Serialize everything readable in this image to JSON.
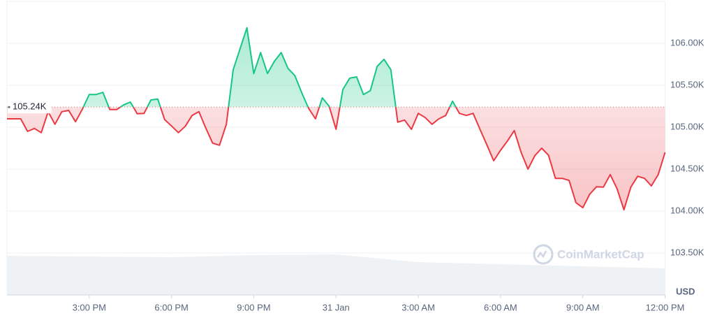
{
  "chart_data": {
    "type": "line",
    "x": [
      0,
      0.25,
      0.5,
      0.75,
      1,
      1.25,
      1.5,
      1.75,
      2,
      2.25,
      2.5,
      2.75,
      3,
      3.25,
      3.5,
      3.75,
      4,
      4.25,
      4.5,
      4.75,
      5,
      5.25,
      5.5,
      5.75,
      6,
      6.25,
      6.5,
      6.75,
      7,
      7.25,
      7.5,
      7.75,
      8,
      8.25,
      8.5,
      8.75,
      9,
      9.25,
      9.5,
      9.75,
      10,
      10.25,
      10.5,
      10.75,
      11,
      11.25,
      11.5,
      11.75,
      12,
      12.25,
      12.5,
      12.75,
      13,
      13.25,
      13.5,
      13.75,
      14,
      14.25,
      14.5,
      14.75,
      15,
      15.25,
      15.5,
      15.75,
      16,
      16.25,
      16.5,
      16.75,
      17,
      17.25,
      17.5,
      17.75,
      18,
      18.25,
      18.5,
      18.75,
      19,
      19.25,
      19.5,
      19.75,
      20,
      20.25,
      20.5,
      20.75,
      21,
      21.25,
      21.5,
      21.75,
      22,
      22.25,
      22.5,
      22.75,
      23,
      23.25,
      23.5,
      23.75,
      24
    ],
    "values": [
      105100,
      105100,
      105100,
      104950,
      104985,
      104935,
      105185,
      105035,
      105185,
      105200,
      105065,
      105215,
      105390,
      105390,
      105415,
      105210,
      105210,
      105265,
      105300,
      105160,
      105165,
      105325,
      105335,
      105090,
      105015,
      104935,
      105010,
      105140,
      105185,
      104990,
      104810,
      104785,
      105035,
      105685,
      105935,
      106185,
      105640,
      105890,
      105640,
      105785,
      105890,
      105700,
      105615,
      105410,
      105225,
      105100,
      105350,
      105250,
      104975,
      105450,
      105585,
      105600,
      105390,
      105435,
      105725,
      105810,
      105685,
      105060,
      105085,
      104975,
      105165,
      105115,
      105035,
      105100,
      105140,
      105310,
      105165,
      105140,
      105165,
      104975,
      104790,
      104600,
      104725,
      104835,
      104960,
      104700,
      104500,
      104660,
      104750,
      104665,
      104390,
      104390,
      104365,
      104100,
      104040,
      104200,
      104290,
      104285,
      104435,
      104265,
      104015,
      104285,
      104415,
      104390,
      104300,
      104435,
      104700
    ],
    "up_color": "#16c784",
    "down_color": "#ea3943",
    "baseline": {
      "value": 105240,
      "label": "105.24K"
    },
    "volume": {
      "x": [
        0,
        3,
        6,
        9,
        12,
        15,
        18,
        21,
        24
      ],
      "values": [
        56,
        55,
        54,
        57,
        58,
        47,
        44,
        41,
        38
      ],
      "ylim": [
        0,
        420
      ],
      "color": "#eff2f5"
    },
    "xlim": [
      0,
      24
    ],
    "xticks": [
      {
        "value": 3,
        "label": "3:00 PM"
      },
      {
        "value": 6,
        "label": "6:00 PM"
      },
      {
        "value": 9,
        "label": "9:00 PM"
      },
      {
        "value": 12,
        "label": "31 Jan"
      },
      {
        "value": 15,
        "label": "3:00 AM"
      },
      {
        "value": 18,
        "label": "6:00 AM"
      },
      {
        "value": 21,
        "label": "9:00 AM"
      },
      {
        "value": 24,
        "label": "12:00 PM"
      }
    ],
    "ylim": [
      103000,
      106500
    ],
    "yticks": [
      {
        "value": 103500,
        "label": "103.50K"
      },
      {
        "value": 104000,
        "label": "104.00K"
      },
      {
        "value": 104500,
        "label": "104.50K"
      },
      {
        "value": 105000,
        "label": "105.00K"
      },
      {
        "value": 105500,
        "label": "105.50K"
      },
      {
        "value": 106000,
        "label": "106.00K"
      }
    ],
    "y_label": "USD",
    "watermark": "CoinMarketCap",
    "grid": true
  }
}
